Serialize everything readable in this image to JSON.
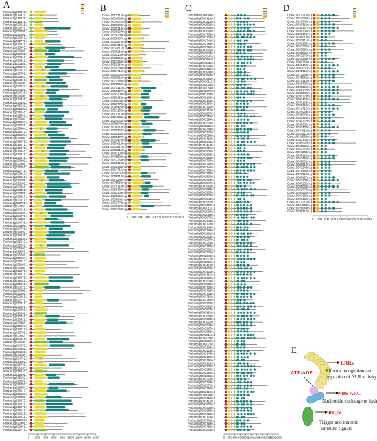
{
  "colors": {
    "backbone": "#222222",
    "rx_n": "#b3261e",
    "nb_arc": "#e7d73a",
    "lrr": "#17807c",
    "alt_green": "#7fc041",
    "alt_pink": "#f29bc1",
    "alt_orange": "#f0a640",
    "alt_gray": "#a7a7a7",
    "alt_purple": "#8a62b8",
    "model_lrr": "#f1e38a",
    "model_nbarc": "#6fb3d9",
    "model_rxn": "#55b34a",
    "model_atp": "#dcb6e6",
    "accent_red": "#d0201a"
  },
  "panels": [
    {
      "letter": "A",
      "axis_ticks": [
        "0",
        "200",
        "400",
        "600",
        "800",
        "1000",
        "1200",
        "1400",
        "1600"
      ],
      "gene_labels": [
        "Porkan1g018875.1",
        "Porkan1g019071.1",
        "Porkan1g019075.1",
        "Porkan1g019141.1",
        "Porkan1g020215.1",
        "Porkan1g020219.1",
        "Porkan1g020299.1",
        "Porkan1g022401.1",
        "Porkan1g022461.1",
        "Porkan1g022779.1",
        "Porkan1g022819.1",
        "Porkan1g023045.1",
        "Porkan1g023085.1",
        "Porkan1g023281.1",
        "Porkan1g023346.1",
        "Porkan1g023421.1",
        "Porkan1g023485.1",
        "Porkan1g023527.1",
        "Porkan1g023611.1",
        "Porkan1g023701.1",
        "Porkan1g023853.1",
        "Porkan1g024016.1",
        "Porkan1g024198.1",
        "Porkan1g024270.1",
        "Porkan1g024481.1",
        "Porkan1g024536.1",
        "Porkan1g024608.1",
        "Porkan1g024731.1",
        "Porkan1g024892.1",
        "Porkan1g025039.1",
        "Porkan1g025118.1",
        "Porkan1g025240.1",
        "Porkan1g025391.1",
        "Porkan1g025502.1",
        "Porkan1g025637.1",
        "Porkan1g025781.1",
        "Porkan1g025904.1",
        "Porkan1g026012.1",
        "Porkan1g026187.1",
        "Porkan1g026309.1"
      ]
    },
    {
      "letter": "B",
      "axis_ticks": [
        "0",
        "300",
        "600",
        "900",
        "1200",
        "1500",
        "1800",
        "2100",
        "2400"
      ],
      "gene_labels": [
        "Cclev10010715m.g",
        "Cclev10024038m.g",
        "Cclev10024041m.g",
        "Cclev10026040m.g",
        "Cclev10030318m.g",
        "Cclev10030327m.g",
        "Cclev10030330m.g",
        "Cclev10030487m.g",
        "Cclev10032478m.g",
        "Cclev10034019m.g",
        "Cclev10037811m.g",
        "Cclev10038218m.g",
        "Cclev10043105m.g",
        "Cclev10045592m.g",
        "Cclev10057263m.g",
        "Cclev10060118m.g",
        "Cclev10061284m.g",
        "Cclev10064715m.g",
        "Cclev10067031m.g",
        "Cclev10069910m.g",
        "Cclev10072248m.g",
        "Cclev10075560m.g",
        "Cclev10078113m.g",
        "Cclev10080427m.g",
        "Cclev10083309m.g",
        "Cclev10086152m.g",
        "Cclev10089048m.g",
        "Cclev10091773m.g",
        "Cclev10094420m.g",
        "Cclev10097136m.g"
      ]
    },
    {
      "letter": "C",
      "axis_ticks": [
        "0",
        "200",
        "400",
        "600",
        "800",
        "1000",
        "1200",
        "1400",
        "1600",
        "1800",
        "2000"
      ],
      "gene_labels": [
        "Porkan4g00406430.1",
        "Porkan3g00014140.1",
        "Porkan3g00014150.1",
        "Porkan3g00015320.1",
        "Porkan3g00015330.1",
        "Porkan3g00016880.1",
        "Porkan3g00017040.1",
        "Porkan3g00017280.1",
        "Porkan3g00017410.1",
        "Porkan3g00017590.1",
        "Porkan3g00017820.1",
        "Porkan3g00018060.1",
        "Porkan3g00018230.1",
        "Porkan3g00018470.1",
        "Porkan3g00018610.1",
        "Porkan3g00018890.1",
        "Porkan3g00019030.1",
        "Porkan3g00019250.1",
        "Porkan3g00019480.1",
        "Porkan3g00019670.1",
        "Porkan3g00019820.1",
        "Porkan3g00020110.1",
        "Porkan3g00020340.1",
        "Porkan3g00020590.1",
        "Porkan3g00020760.1",
        "Porkan3g00021030.1",
        "Porkan3g00021280.1",
        "Porkan3g00021440.1",
        "Porkan3g00021690.1",
        "Porkan3g00021910.1",
        "Porkan3g00022150.1",
        "Porkan3g00022370.1",
        "Porkan3g00022580.1",
        "Porkan3g00022840.1",
        "Porkan3g00023010.1",
        "Porkan3g00023260.1",
        "Porkan3g00023490.1",
        "Porkan3g00023720.1",
        "Porkan3g00023950.1",
        "Porkan3g00024180.1"
      ]
    },
    {
      "letter": "D",
      "axis_ticks": [
        "0",
        "300",
        "600",
        "900",
        "1200",
        "1500",
        "1800",
        "2100",
        "2400"
      ],
      "gene_labels": [
        "Cclev10010715m.g",
        "Cclev10024038m.g",
        "Cclev10026040m.g",
        "Cclev10030318m.g",
        "Cclev10030327m.g",
        "Cclev10030330m.g",
        "Cclev10032478m.g",
        "Cclev10034019m.g",
        "Cclev10037811m.g",
        "Cclev10041563m.g",
        "Cclev10043105m.g",
        "Cclev10045592m.g",
        "Cclev10048831m.g",
        "Cclev10052276m.g",
        "Cclev10057263m.g",
        "Cclev10060118m.g",
        "Cclev10063492m.g",
        "Cclev10067031m.g",
        "Cclev10069910m.g",
        "Cclev10072248m.g",
        "Cclev10075560m.g",
        "Cclev10078113m.g",
        "Cclev10080427m.g",
        "Cclev10083309m.g",
        "Cclev10086152m.g",
        "Cclev10089048m.g",
        "Cclev10091773m.g",
        "Cclev10094420m.g",
        "Cclev10097136m.g",
        "Cclev10099452m.g"
      ]
    }
  ],
  "panel_e": {
    "letter": "E",
    "lrr_label": "LRRs",
    "lrr_desc_line1": "Effector recognition and",
    "lrr_desc_line2": "regulation of NLR activity",
    "atp_label": "ATP/ADP",
    "nbarc_label": "NBS-ARC",
    "nbarc_desc": "Nucleotide exchange or hydrolysis",
    "rxn_label": "Rx_N",
    "rxn_desc_line1": "Trigger and transmit",
    "rxn_desc_line2": "immune signals"
  }
}
